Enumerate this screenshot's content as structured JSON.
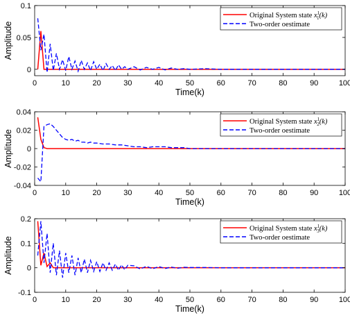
{
  "chart_data": [
    {
      "type": "line",
      "title": "",
      "xlabel": "Time(k)",
      "ylabel": "Amplitude",
      "xlim": [
        0,
        100
      ],
      "ylim": [
        -0.01,
        0.1
      ],
      "xticks": [
        0,
        10,
        20,
        30,
        40,
        50,
        60,
        70,
        80,
        90,
        100
      ],
      "yticks": [
        0,
        0.05,
        0.1
      ],
      "ytick_labels": [
        "0",
        "0.05",
        "0.1"
      ],
      "legend_position": "top-right",
      "series": [
        {
          "name": "Original System state x_1^1(k)",
          "legend_main": "Original System state ",
          "legend_var": "x",
          "legend_sup": "1",
          "legend_sub": "1",
          "legend_arg": "(k)",
          "color": "#ff0000",
          "style": "solid",
          "x": [
            1,
            2,
            3,
            4,
            5,
            10,
            20,
            50,
            100
          ],
          "y": [
            0,
            0.06,
            0,
            0,
            0,
            0,
            0,
            0,
            0
          ]
        },
        {
          "name": "Two-order oestimate",
          "color": "#0000ff",
          "style": "dashed",
          "x": [
            1,
            2,
            3,
            4,
            5,
            6,
            7,
            8,
            9,
            10,
            11,
            12,
            13,
            14,
            15,
            16,
            17,
            18,
            19,
            20,
            21,
            22,
            23,
            24,
            25,
            26,
            27,
            28,
            29,
            30,
            32,
            34,
            36,
            38,
            40,
            42,
            44,
            46,
            48,
            50,
            55,
            60,
            65,
            70,
            75,
            80,
            85,
            90,
            95,
            100
          ],
          "y": [
            0.08,
            0.03,
            0.055,
            -0.005,
            0.04,
            -0.002,
            0.025,
            0.0,
            0.015,
            -0.002,
            0.02,
            0.0,
            0.013,
            -0.003,
            0.014,
            0.0,
            0.01,
            -0.002,
            0.012,
            0.0,
            0.008,
            -0.002,
            0.009,
            0.0,
            0.006,
            -0.002,
            0.007,
            0.0,
            0.004,
            0.0,
            0.004,
            -0.001,
            0.003,
            0.0,
            0.003,
            -0.001,
            0.002,
            0.0,
            0.001,
            0.0,
            0.001,
            0.0,
            0.0,
            0.0,
            0.0,
            0.0,
            0.0,
            0.0,
            0.0,
            0.0
          ]
        }
      ]
    },
    {
      "type": "line",
      "title": "",
      "xlabel": "Time(k)",
      "ylabel": "Amplitude",
      "xlim": [
        0,
        100
      ],
      "ylim": [
        -0.04,
        0.04
      ],
      "xticks": [
        0,
        10,
        20,
        30,
        40,
        50,
        60,
        70,
        80,
        90,
        100
      ],
      "yticks": [
        -0.04,
        -0.02,
        0,
        0.02,
        0.04
      ],
      "ytick_labels": [
        "-0.04",
        "-0.02",
        "0",
        "0.02",
        "0.04"
      ],
      "legend_position": "top-right",
      "series": [
        {
          "name": "Original System state x_2^1(k)",
          "legend_main": "Original System state ",
          "legend_var": "x",
          "legend_sup": "1",
          "legend_sub": "2",
          "legend_arg": "(k)",
          "color": "#ff0000",
          "style": "solid",
          "x": [
            1,
            2,
            3,
            4,
            5,
            10,
            20,
            50,
            100
          ],
          "y": [
            0.034,
            0.01,
            0.001,
            0,
            0,
            0,
            0,
            0,
            0
          ]
        },
        {
          "name": "Two-order oestimate",
          "color": "#0000ff",
          "style": "dashed",
          "x": [
            1,
            2,
            3,
            4,
            5,
            6,
            7,
            8,
            9,
            10,
            11,
            12,
            13,
            14,
            15,
            16,
            17,
            18,
            19,
            20,
            22,
            24,
            26,
            28,
            30,
            32,
            34,
            36,
            38,
            40,
            42,
            44,
            46,
            48,
            50,
            55,
            60,
            70,
            80,
            90,
            100
          ],
          "y": [
            -0.032,
            -0.036,
            0.024,
            0.026,
            0.027,
            0.024,
            0.02,
            0.016,
            0.012,
            0.01,
            0.009,
            0.01,
            0.008,
            0.009,
            0.007,
            0.007,
            0.006,
            0.007,
            0.006,
            0.006,
            0.005,
            0.005,
            0.004,
            0.004,
            0.003,
            0.002,
            0.002,
            0.001,
            0.002,
            0.002,
            0.002,
            0.001,
            0.001,
            0.001,
            0.0,
            0.0,
            0.0,
            0.0,
            0.0,
            0.0,
            0.0
          ]
        }
      ]
    },
    {
      "type": "line",
      "title": "",
      "xlabel": "Time(k)",
      "ylabel": "Amplitude",
      "xlim": [
        0,
        100
      ],
      "ylim": [
        -0.1,
        0.2
      ],
      "xticks": [
        0,
        10,
        20,
        30,
        40,
        50,
        60,
        70,
        80,
        90,
        100
      ],
      "yticks": [
        -0.1,
        0,
        0.1,
        0.2
      ],
      "ytick_labels": [
        "-0.1",
        "0",
        "0.1",
        "0.2"
      ],
      "legend_position": "top-right",
      "series": [
        {
          "name": "Original System state x_3^1(k)",
          "legend_main": "Original System state ",
          "legend_var": "x",
          "legend_sup": "1",
          "legend_sub": "3",
          "legend_arg": "(k)",
          "color": "#ff0000",
          "style": "solid",
          "x": [
            1,
            2,
            3,
            4,
            5,
            6,
            7,
            10,
            20,
            50,
            100
          ],
          "y": [
            0.19,
            0.01,
            0.06,
            0.005,
            0.02,
            0.0,
            0.0,
            0.0,
            0.0,
            0.0,
            0.0
          ]
        },
        {
          "name": "Two-order oestimate",
          "color": "#0000ff",
          "style": "dashed",
          "x": [
            1,
            2,
            3,
            4,
            5,
            6,
            7,
            8,
            9,
            10,
            11,
            12,
            13,
            14,
            15,
            16,
            17,
            18,
            19,
            20,
            21,
            22,
            23,
            24,
            25,
            26,
            27,
            28,
            29,
            30,
            32,
            34,
            36,
            38,
            40,
            42,
            44,
            46,
            48,
            50,
            55,
            60,
            70,
            80,
            90,
            100
          ],
          "y": [
            0.05,
            0.19,
            0.02,
            0.14,
            -0.02,
            0.1,
            -0.03,
            0.07,
            -0.04,
            0.06,
            -0.02,
            0.05,
            -0.03,
            0.04,
            -0.02,
            0.035,
            -0.02,
            0.03,
            -0.015,
            0.025,
            -0.015,
            0.02,
            -0.01,
            0.02,
            -0.01,
            0.015,
            -0.01,
            0.012,
            -0.008,
            0.01,
            0.008,
            -0.005,
            0.006,
            -0.004,
            0.005,
            -0.003,
            0.003,
            -0.002,
            0.002,
            0.001,
            0.001,
            0.0,
            0.0,
            0.0,
            0.0,
            0.0
          ]
        }
      ]
    }
  ]
}
